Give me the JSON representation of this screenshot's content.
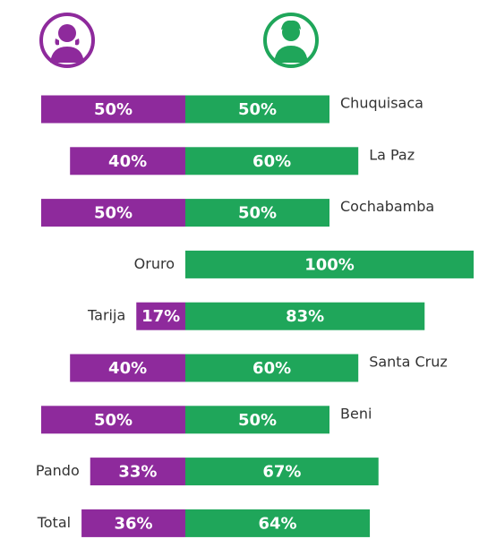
{
  "chart_data": {
    "type": "diverging_bar",
    "categories": [
      "Chuquisaca",
      "La Paz",
      "Cochabamba",
      "Oruro",
      "Tarija",
      "Santa Cruz",
      "Beni",
      "Pando",
      "Total"
    ],
    "series": [
      {
        "color": "#8e2a9c",
        "values": [
          50,
          40,
          50,
          0,
          17,
          40,
          50,
          33,
          36
        ],
        "value_labels": [
          "50%",
          "40%",
          "50%",
          null,
          "17%",
          "40%",
          "50%",
          "33%",
          "36%"
        ]
      },
      {
        "color": "#1fa65a",
        "values": [
          50,
          60,
          50,
          100,
          83,
          60,
          50,
          67,
          64
        ],
        "value_labels": [
          "50%",
          "60%",
          "50%",
          "100%",
          "83%",
          "60%",
          "50%",
          "67%",
          "64%"
        ]
      }
    ]
  }
}
